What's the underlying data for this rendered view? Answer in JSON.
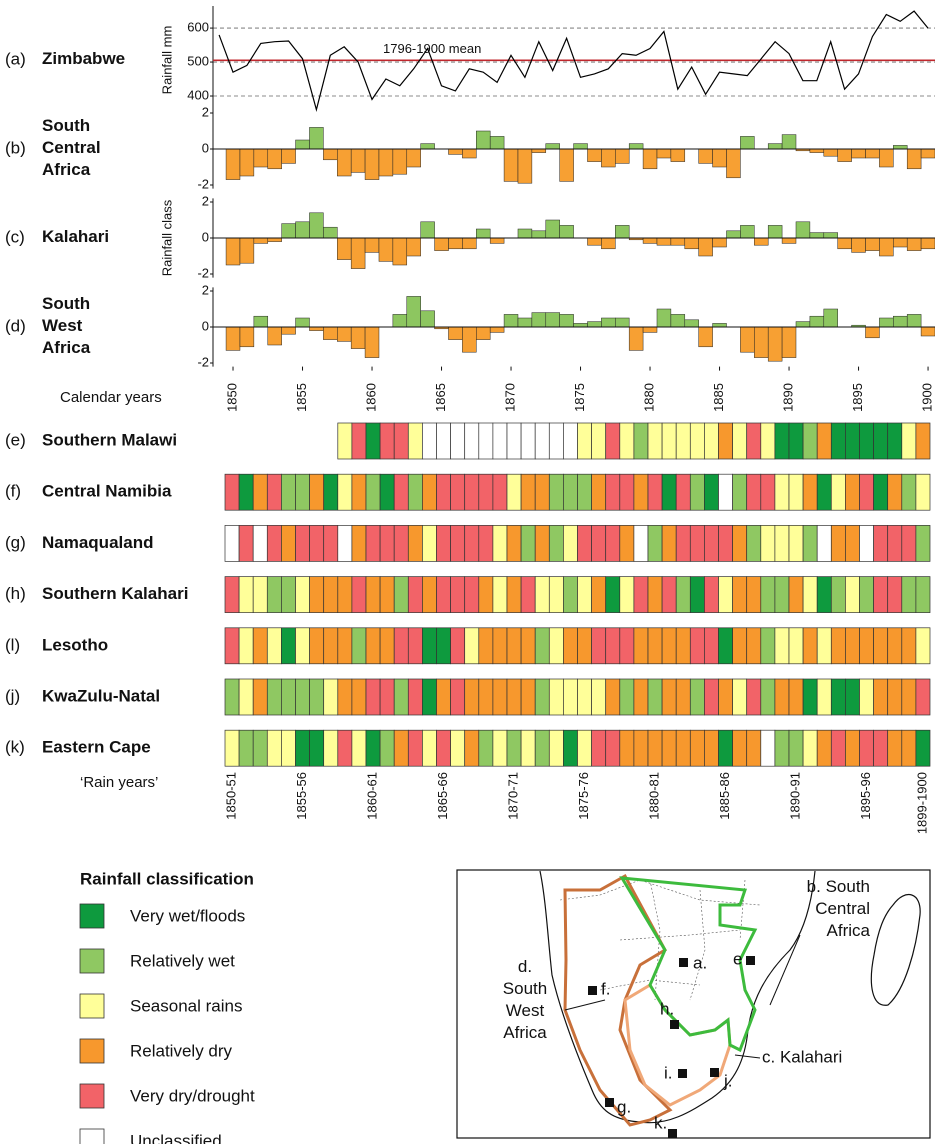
{
  "chart_data": [
    {
      "type": "line",
      "panel": "(a)",
      "title": [
        "Zimbabwe"
      ],
      "y_label": "Rainfall mm",
      "x": [
        1849,
        1850,
        1851,
        1852,
        1853,
        1854,
        1855,
        1856,
        1857,
        1858,
        1859,
        1860,
        1861,
        1862,
        1863,
        1864,
        1865,
        1866,
        1867,
        1868,
        1869,
        1870,
        1871,
        1872,
        1873,
        1874,
        1875,
        1876,
        1877,
        1878,
        1879,
        1880,
        1881,
        1882,
        1883,
        1884,
        1885,
        1886,
        1887,
        1888,
        1889,
        1890,
        1891,
        1892,
        1893,
        1894,
        1895,
        1896,
        1897,
        1898,
        1899,
        1900
      ],
      "values": [
        580,
        470,
        490,
        555,
        560,
        562,
        510,
        360,
        520,
        545,
        500,
        390,
        450,
        430,
        480,
        540,
        430,
        415,
        480,
        470,
        440,
        520,
        455,
        560,
        475,
        570,
        455,
        465,
        480,
        525,
        520,
        540,
        590,
        420,
        485,
        405,
        470,
        465,
        460,
        510,
        560,
        525,
        445,
        445,
        560,
        420,
        465,
        575,
        640,
        620,
        650,
        600
      ],
      "color": "#000000",
      "xlim": [
        1848.56,
        1900.5
      ],
      "ylim": [
        350,
        665
      ],
      "yticks": [
        400,
        500,
        600
      ],
      "grid": "dashed",
      "mean": {
        "value": 505,
        "label": "1796-1900 mean",
        "color": "#c0272d"
      }
    },
    {
      "type": "bar",
      "panel": "(b)",
      "title": [
        "South",
        "Central",
        "Africa"
      ],
      "x": [
        1850,
        1851,
        1852,
        1853,
        1854,
        1855,
        1856,
        1857,
        1858,
        1859,
        1860,
        1861,
        1862,
        1863,
        1864,
        1865,
        1866,
        1867,
        1868,
        1869,
        1870,
        1871,
        1872,
        1873,
        1874,
        1875,
        1876,
        1877,
        1878,
        1879,
        1880,
        1881,
        1882,
        1883,
        1884,
        1885,
        1886,
        1887,
        1888,
        1889,
        1890,
        1891,
        1892,
        1893,
        1894,
        1895,
        1896,
        1897,
        1898,
        1899,
        1900
      ],
      "values": [
        -1.7,
        -1.5,
        -1.0,
        -1.1,
        -0.8,
        0.5,
        1.2,
        -0.6,
        -1.5,
        -1.3,
        -1.7,
        -1.5,
        -1.4,
        -1.0,
        0.3,
        0,
        -0.3,
        -0.5,
        1.0,
        0.7,
        -1.8,
        -1.9,
        -0.2,
        0.3,
        -1.8,
        0.3,
        -0.7,
        -1.0,
        -0.8,
        0.3,
        -1.1,
        -0.5,
        -0.7,
        0,
        -0.8,
        -1.0,
        -1.6,
        0.7,
        0,
        0.3,
        0.8,
        -0.1,
        -0.2,
        -0.4,
        -0.7,
        -0.5,
        -0.5,
        -1.0,
        0.2,
        -1.1,
        -0.5
      ],
      "positive_color": "#8dc660",
      "negative_color": "#f7a033",
      "xlim": [
        1848.56,
        1900.5
      ],
      "ylim": [
        -2.2,
        2.2
      ],
      "yticks": [
        -2,
        0,
        2
      ]
    },
    {
      "type": "bar",
      "panel": "(c)",
      "title": [
        "Kalahari"
      ],
      "y_label": "Rainfall class",
      "x": [
        1850,
        1851,
        1852,
        1853,
        1854,
        1855,
        1856,
        1857,
        1858,
        1859,
        1860,
        1861,
        1862,
        1863,
        1864,
        1865,
        1866,
        1867,
        1868,
        1869,
        1870,
        1871,
        1872,
        1873,
        1874,
        1875,
        1876,
        1877,
        1878,
        1879,
        1880,
        1881,
        1882,
        1883,
        1884,
        1885,
        1886,
        1887,
        1888,
        1889,
        1890,
        1891,
        1892,
        1893,
        1894,
        1895,
        1896,
        1897,
        1898,
        1899,
        1900
      ],
      "values": [
        -1.5,
        -1.4,
        -0.3,
        -0.2,
        0.8,
        0.9,
        1.4,
        0.6,
        -1.2,
        -1.7,
        -0.8,
        -1.3,
        -1.5,
        -1.0,
        0.9,
        -0.7,
        -0.6,
        -0.6,
        0.5,
        -0.3,
        0,
        0.5,
        0.4,
        1.0,
        0.7,
        0,
        -0.4,
        -0.6,
        0.7,
        -0.1,
        -0.3,
        -0.4,
        -0.4,
        -0.6,
        -1.0,
        -0.5,
        0.4,
        0.7,
        -0.4,
        0.7,
        -0.3,
        0.9,
        0.3,
        0.3,
        -0.6,
        -0.8,
        -0.7,
        -1.0,
        -0.5,
        -0.7,
        -0.6
      ],
      "positive_color": "#8dc660",
      "negative_color": "#f7a033",
      "xlim": [
        1848.56,
        1900.5
      ],
      "ylim": [
        -2.2,
        2.2
      ],
      "yticks": [
        -2,
        0,
        2
      ]
    },
    {
      "type": "bar",
      "panel": "(d)",
      "title": [
        "South",
        "West",
        "Africa"
      ],
      "x_label": "Calendar years",
      "x": [
        1850,
        1851,
        1852,
        1853,
        1854,
        1855,
        1856,
        1857,
        1858,
        1859,
        1860,
        1861,
        1862,
        1863,
        1864,
        1865,
        1866,
        1867,
        1868,
        1869,
        1870,
        1871,
        1872,
        1873,
        1874,
        1875,
        1876,
        1877,
        1878,
        1879,
        1880,
        1881,
        1882,
        1883,
        1884,
        1885,
        1886,
        1887,
        1888,
        1889,
        1890,
        1891,
        1892,
        1893,
        1894,
        1895,
        1896,
        1897,
        1898,
        1899,
        1900
      ],
      "values": [
        -1.3,
        -1.1,
        0.6,
        -1.0,
        -0.4,
        0.5,
        -0.2,
        -0.7,
        -0.8,
        -1.2,
        -1.7,
        0,
        0.7,
        1.7,
        0.9,
        -0.1,
        -0.7,
        -1.4,
        -0.7,
        -0.3,
        0.7,
        0.5,
        0.8,
        0.8,
        0.7,
        0.2,
        0.3,
        0.5,
        0.5,
        -1.3,
        -0.3,
        1.0,
        0.7,
        0.4,
        -1.1,
        0.2,
        0,
        -1.4,
        -1.7,
        -1.9,
        -1.7,
        0.3,
        0.6,
        1.0,
        0,
        0.1,
        -0.6,
        0.5,
        0.6,
        0.7,
        -0.5
      ],
      "positive_color": "#8dc660",
      "negative_color": "#f7a033",
      "xlim": [
        1848.56,
        1900.5
      ],
      "ylim": [
        -2.2,
        2.2
      ],
      "yticks": [
        -2,
        0,
        2
      ],
      "xticks": [
        1850,
        1855,
        1860,
        1865,
        1870,
        1875,
        1880,
        1885,
        1890,
        1895,
        1900
      ]
    },
    {
      "type": "strips",
      "x_label": "‘Rain years’",
      "legend_title": "Rainfall classification",
      "categories": [
        "1850-51",
        null,
        null,
        null,
        null,
        "1855-56",
        null,
        null,
        null,
        null,
        "1860-61",
        null,
        null,
        null,
        null,
        "1865-66",
        null,
        null,
        null,
        null,
        "1870-71",
        null,
        null,
        null,
        null,
        "1875-76",
        null,
        null,
        null,
        null,
        "1880-81",
        null,
        null,
        null,
        null,
        "1885-86",
        null,
        null,
        null,
        null,
        "1890-91",
        null,
        null,
        null,
        null,
        "1895-96",
        null,
        null,
        null,
        "1899-1900"
      ],
      "classes": [
        {
          "name": "Very wet/floods",
          "color": "#0e9a3e"
        },
        {
          "name": "Relatively wet",
          "color": "#8fc862"
        },
        {
          "name": "Seasonal rains",
          "color": "#ffff99"
        },
        {
          "name": "Relatively dry",
          "color": "#f7982d"
        },
        {
          "name": "Very dry/drought",
          "color": "#f26368"
        },
        {
          "name": "Unclassified",
          "color": "#ffffff"
        }
      ],
      "rows": [
        {
          "panel": "(e)",
          "name": "Southern Malawi",
          "values": [
            null,
            null,
            null,
            null,
            null,
            null,
            null,
            null,
            2,
            4,
            0,
            4,
            4,
            2,
            5,
            5,
            5,
            5,
            5,
            5,
            5,
            5,
            5,
            5,
            5,
            2,
            2,
            4,
            2,
            1,
            2,
            2,
            2,
            2,
            2,
            3,
            2,
            4,
            2,
            0,
            0,
            1,
            3,
            0,
            0,
            0,
            0,
            0,
            2,
            3
          ]
        },
        {
          "panel": "(f)",
          "name": "Central Namibia",
          "values": [
            4,
            0,
            3,
            4,
            1,
            1,
            3,
            0,
            2,
            3,
            1,
            0,
            4,
            1,
            3,
            4,
            4,
            4,
            4,
            4,
            2,
            3,
            3,
            1,
            1,
            1,
            3,
            4,
            4,
            3,
            4,
            0,
            4,
            1,
            0,
            5,
            1,
            4,
            4,
            2,
            2,
            3,
            0,
            2,
            3,
            4,
            0,
            3,
            1,
            2
          ]
        },
        {
          "panel": "(g)",
          "name": "Namaqualand",
          "values": [
            5,
            4,
            5,
            4,
            3,
            4,
            4,
            4,
            5,
            3,
            4,
            4,
            4,
            3,
            2,
            4,
            4,
            4,
            4,
            2,
            3,
            1,
            3,
            1,
            2,
            4,
            4,
            4,
            3,
            5,
            1,
            3,
            4,
            4,
            4,
            4,
            3,
            1,
            2,
            2,
            2,
            1,
            5,
            3,
            3,
            5,
            4,
            4,
            4,
            1
          ]
        },
        {
          "panel": "(h)",
          "name": "Southern Kalahari",
          "values": [
            4,
            2,
            2,
            1,
            1,
            2,
            3,
            3,
            3,
            4,
            3,
            3,
            1,
            4,
            3,
            4,
            4,
            4,
            3,
            2,
            3,
            4,
            2,
            2,
            1,
            2,
            3,
            0,
            2,
            4,
            3,
            4,
            1,
            0,
            4,
            2,
            3,
            3,
            1,
            1,
            3,
            2,
            0,
            1,
            2,
            1,
            4,
            4,
            1,
            1
          ]
        },
        {
          "panel": "(l)",
          "name": "Lesotho",
          "values": [
            4,
            2,
            3,
            2,
            0,
            2,
            3,
            3,
            3,
            1,
            3,
            3,
            4,
            4,
            0,
            0,
            4,
            2,
            3,
            3,
            3,
            3,
            1,
            2,
            3,
            3,
            4,
            4,
            4,
            3,
            3,
            3,
            3,
            4,
            4,
            0,
            3,
            3,
            1,
            2,
            2,
            3,
            2,
            3,
            3,
            3,
            3,
            3,
            3,
            2
          ]
        },
        {
          "panel": "(j)",
          "name": "KwaZulu-Natal",
          "values": [
            1,
            2,
            3,
            1,
            1,
            1,
            1,
            2,
            3,
            3,
            4,
            4,
            1,
            4,
            0,
            3,
            4,
            3,
            3,
            3,
            3,
            3,
            1,
            2,
            2,
            2,
            2,
            3,
            1,
            3,
            1,
            3,
            3,
            1,
            4,
            3,
            2,
            4,
            1,
            3,
            3,
            0,
            2,
            0,
            0,
            2,
            3,
            3,
            3,
            4
          ]
        },
        {
          "panel": "(k)",
          "name": "Eastern Cape",
          "values": [
            2,
            1,
            1,
            2,
            2,
            0,
            0,
            2,
            4,
            2,
            0,
            1,
            3,
            4,
            2,
            4,
            2,
            3,
            1,
            2,
            1,
            2,
            1,
            2,
            0,
            2,
            4,
            4,
            3,
            3,
            3,
            3,
            3,
            3,
            3,
            0,
            3,
            3,
            5,
            1,
            1,
            2,
            3,
            4,
            3,
            4,
            4,
            3,
            3,
            0
          ]
        }
      ]
    }
  ],
  "map": {
    "labels": {
      "a": "a.",
      "b": [
        "b. South",
        "Central",
        "Africa"
      ],
      "c": "c. Kalahari",
      "d": [
        "d.",
        "South",
        "West",
        "Africa"
      ],
      "e": "e",
      "f": "f.",
      "g": "g.",
      "h": "h.",
      "i": "i.",
      "j": "j.",
      "k": "k."
    }
  }
}
